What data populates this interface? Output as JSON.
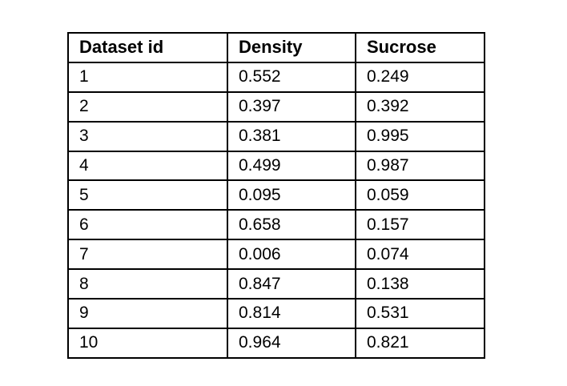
{
  "chart_data": {
    "type": "table",
    "columns": [
      "Dataset id",
      "Density",
      "Sucrose"
    ],
    "rows": [
      [
        "1",
        "0.552",
        "0.249"
      ],
      [
        "2",
        "0.397",
        "0.392"
      ],
      [
        "3",
        "0.381",
        "0.995"
      ],
      [
        "4",
        "0.499",
        "0.987"
      ],
      [
        "5",
        "0.095",
        "0.059"
      ],
      [
        "6",
        "0.658",
        "0.157"
      ],
      [
        "7",
        "0.006",
        "0.074"
      ],
      [
        "8",
        "0.847",
        "0.138"
      ],
      [
        "9",
        "0.814",
        "0.531"
      ],
      [
        "10",
        "0.964",
        "0.821"
      ]
    ]
  },
  "colors": {
    "border": "#000000",
    "text": "#000000",
    "background": "#ffffff"
  }
}
